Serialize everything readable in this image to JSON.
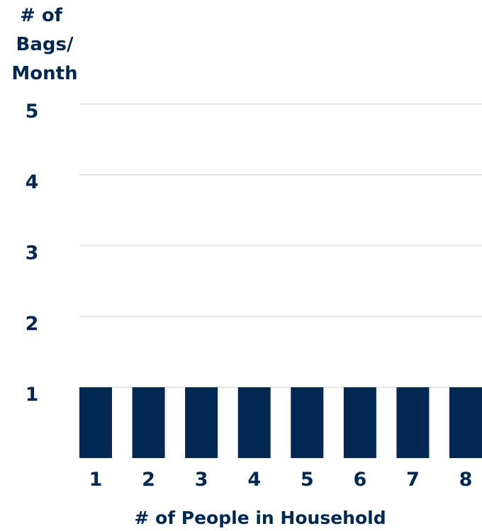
{
  "colors": {
    "bar": "#012853",
    "text": "#012853",
    "grid": "#dddddd"
  },
  "chart_data": {
    "type": "bar",
    "title": "",
    "ylabel_lines": [
      "# of",
      "Bags/",
      "Month"
    ],
    "xlabel": "# of People in Household",
    "categories": [
      "1",
      "2",
      "3",
      "4",
      "5",
      "6",
      "7",
      "8"
    ],
    "values": [
      1,
      1,
      1,
      1,
      1,
      1,
      1,
      1
    ],
    "y_ticks": [
      "1",
      "2",
      "3",
      "4",
      "5"
    ],
    "ylim": [
      0,
      5
    ],
    "grid": true,
    "legend": "none"
  }
}
